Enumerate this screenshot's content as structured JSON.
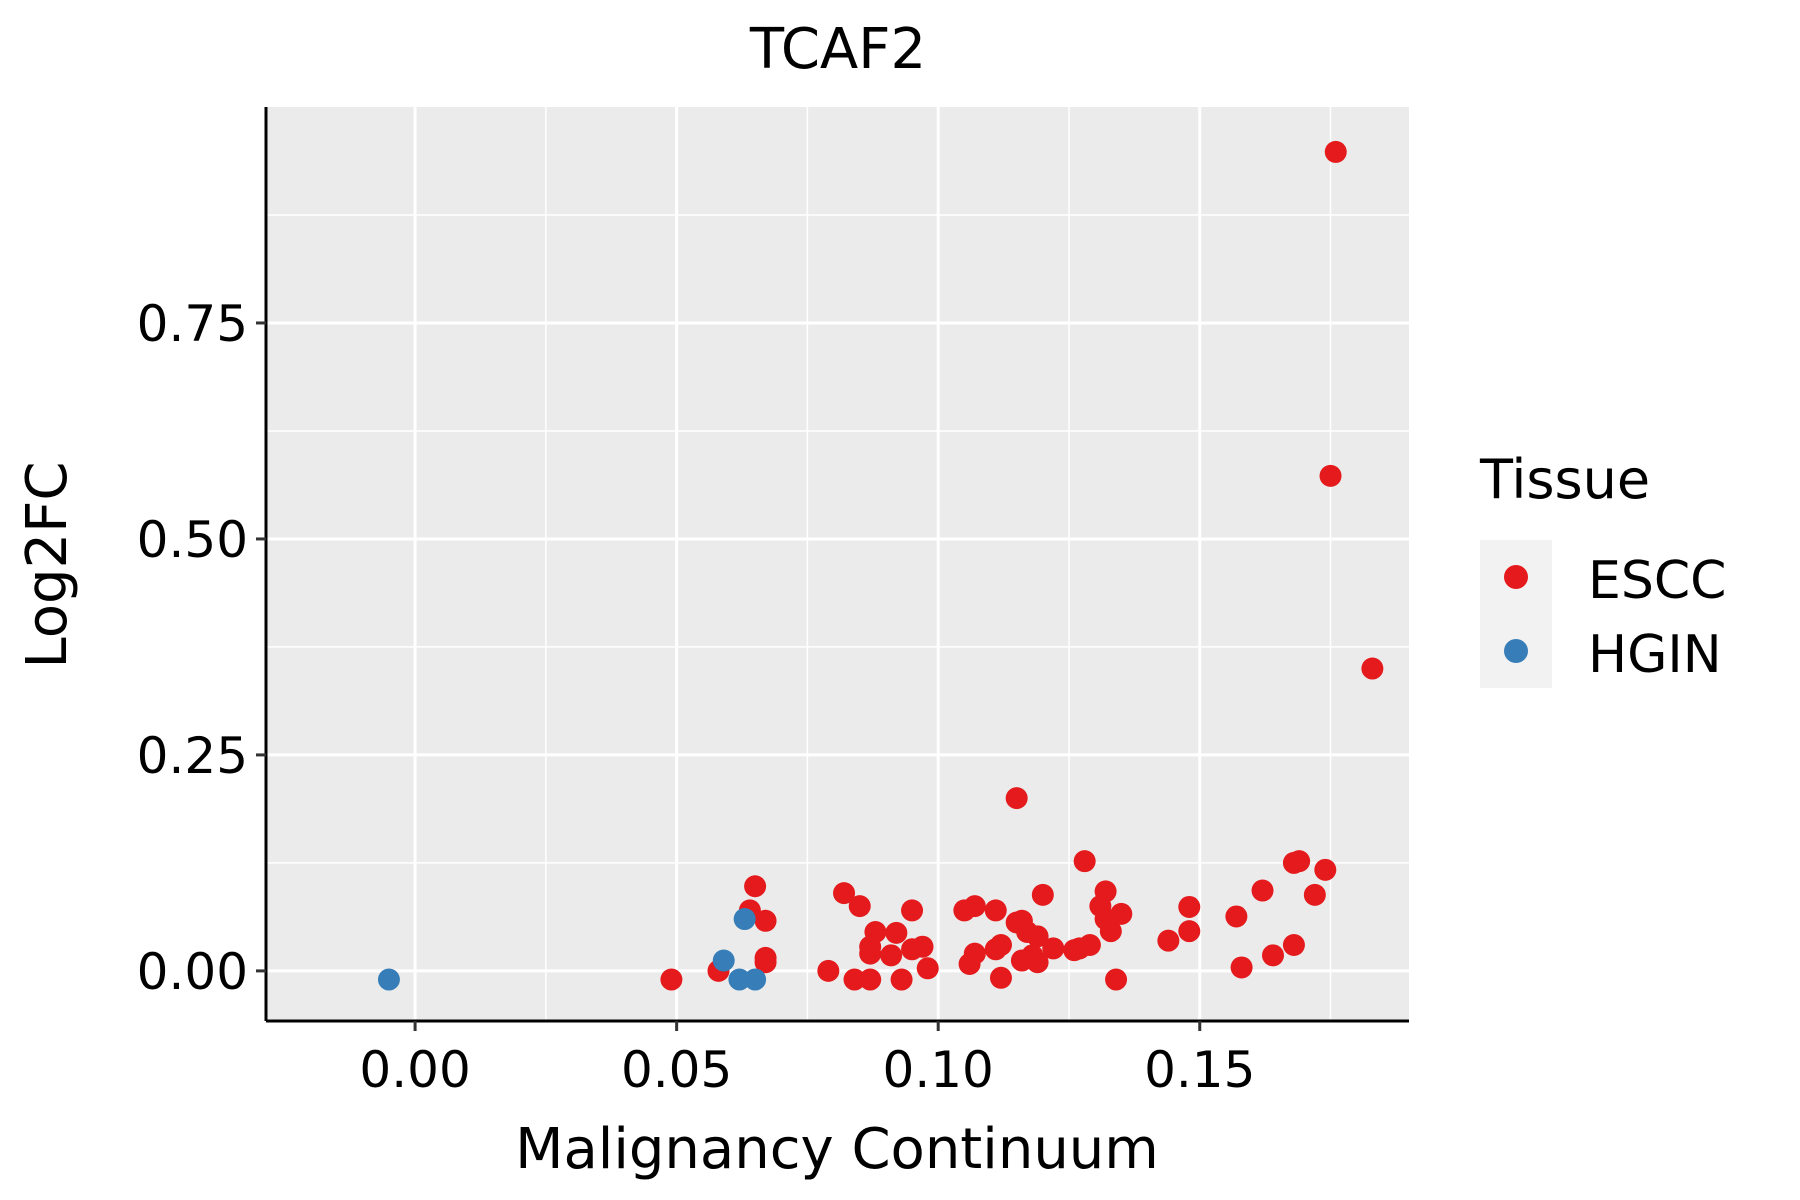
{
  "chart_data": {
    "type": "scatter",
    "title": "TCAF2",
    "xlabel": "Malignancy Continuum",
    "ylabel": "Log2FC",
    "xlim": [
      -0.0285,
      0.19
    ],
    "ylim": [
      -0.058,
      1.0
    ],
    "x_ticks": [
      0.0,
      0.05,
      0.1,
      0.15
    ],
    "x_tick_labels": [
      "0.00",
      "0.05",
      "0.10",
      "0.15"
    ],
    "y_ticks": [
      0.0,
      0.25,
      0.5,
      0.75
    ],
    "y_tick_labels": [
      "0.00",
      "0.25",
      "0.50",
      "0.75"
    ],
    "grid": true,
    "legend": {
      "title": "Tissue",
      "position": "right",
      "entries": [
        {
          "label": "ESCC",
          "color": "#E41A1C"
        },
        {
          "label": "HGIN",
          "color": "#377EB8"
        }
      ]
    },
    "series": [
      {
        "name": "ESCC",
        "color": "#E41A1C",
        "points": [
          [
            0.049,
            -0.01
          ],
          [
            0.058,
            0.0
          ],
          [
            0.064,
            0.07
          ],
          [
            0.065,
            0.098
          ],
          [
            0.067,
            0.058
          ],
          [
            0.067,
            0.015
          ],
          [
            0.067,
            0.01
          ],
          [
            0.079,
            0.0
          ],
          [
            0.082,
            0.09
          ],
          [
            0.084,
            -0.01
          ],
          [
            0.085,
            0.075
          ],
          [
            0.087,
            0.028
          ],
          [
            0.087,
            -0.01
          ],
          [
            0.087,
            0.02
          ],
          [
            0.088,
            0.045
          ],
          [
            0.091,
            0.018
          ],
          [
            0.092,
            0.044
          ],
          [
            0.093,
            -0.01
          ],
          [
            0.095,
            0.07
          ],
          [
            0.095,
            0.025
          ],
          [
            0.097,
            0.028
          ],
          [
            0.098,
            0.003
          ],
          [
            0.105,
            0.07
          ],
          [
            0.106,
            0.008
          ],
          [
            0.107,
            0.075
          ],
          [
            0.107,
            0.02
          ],
          [
            0.111,
            0.07
          ],
          [
            0.111,
            0.025
          ],
          [
            0.112,
            0.03
          ],
          [
            0.112,
            -0.008
          ],
          [
            0.115,
            0.056
          ],
          [
            0.115,
            0.2
          ],
          [
            0.116,
            0.012
          ],
          [
            0.116,
            0.058
          ],
          [
            0.117,
            0.045
          ],
          [
            0.118,
            0.018
          ],
          [
            0.119,
            0.04
          ],
          [
            0.119,
            0.01
          ],
          [
            0.12,
            0.088
          ],
          [
            0.122,
            0.026
          ],
          [
            0.126,
            0.024
          ],
          [
            0.127,
            0.026
          ],
          [
            0.128,
            0.127
          ],
          [
            0.129,
            0.03
          ],
          [
            0.131,
            0.075
          ],
          [
            0.132,
            0.092
          ],
          [
            0.132,
            0.06
          ],
          [
            0.133,
            0.046
          ],
          [
            0.134,
            -0.01
          ],
          [
            0.135,
            0.066
          ],
          [
            0.144,
            0.035
          ],
          [
            0.148,
            0.074
          ],
          [
            0.148,
            0.046
          ],
          [
            0.157,
            0.063
          ],
          [
            0.158,
            0.004
          ],
          [
            0.162,
            0.093
          ],
          [
            0.164,
            0.018
          ],
          [
            0.168,
            0.03
          ],
          [
            0.168,
            0.125
          ],
          [
            0.169,
            0.127
          ],
          [
            0.172,
            0.088
          ],
          [
            0.174,
            0.117
          ],
          [
            0.175,
            0.573
          ],
          [
            0.176,
            0.948
          ],
          [
            0.183,
            0.35
          ]
        ]
      },
      {
        "name": "HGIN",
        "color": "#377EB8",
        "points": [
          [
            -0.005,
            -0.01
          ],
          [
            0.059,
            0.012
          ],
          [
            0.062,
            -0.01
          ],
          [
            0.063,
            0.06
          ],
          [
            0.065,
            -0.01
          ]
        ]
      }
    ]
  }
}
